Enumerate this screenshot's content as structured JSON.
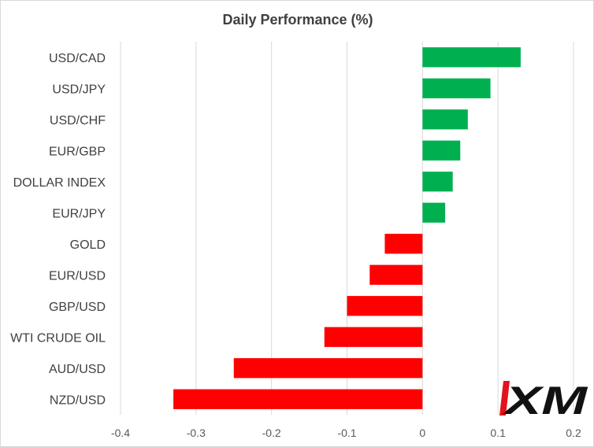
{
  "chart_data": {
    "type": "bar",
    "orientation": "horizontal",
    "title": "Daily Performance (%)",
    "xlabel": "",
    "ylabel": "",
    "categories": [
      "USD/CAD",
      "USD/JPY",
      "USD/CHF",
      "EUR/GBP",
      "DOLLAR INDEX",
      "EUR/JPY",
      "GOLD",
      "EUR/USD",
      "GBP/USD",
      "WTI CRUDE OIL",
      "AUD/USD",
      "NZD/USD"
    ],
    "values": [
      0.13,
      0.09,
      0.06,
      0.05,
      0.04,
      0.03,
      -0.05,
      -0.07,
      -0.1,
      -0.13,
      -0.25,
      -0.33
    ],
    "xlim": [
      -0.4,
      0.2
    ],
    "xticks": [
      -0.4,
      -0.3,
      -0.2,
      -0.1,
      0,
      0.1,
      0.2
    ],
    "xtick_labels": [
      "-0.4",
      "-0.3",
      "-0.2",
      "-0.1",
      "0",
      "0.1",
      "0.2"
    ],
    "grid": "vertical",
    "legend": "none",
    "colors": {
      "positive": "#00b050",
      "negative": "#ff0000",
      "text": "#404040",
      "grid": "#d9d9d9"
    }
  },
  "logo": {
    "text": "XM",
    "accent_color": "#e3141b",
    "text_color": "#111111"
  }
}
